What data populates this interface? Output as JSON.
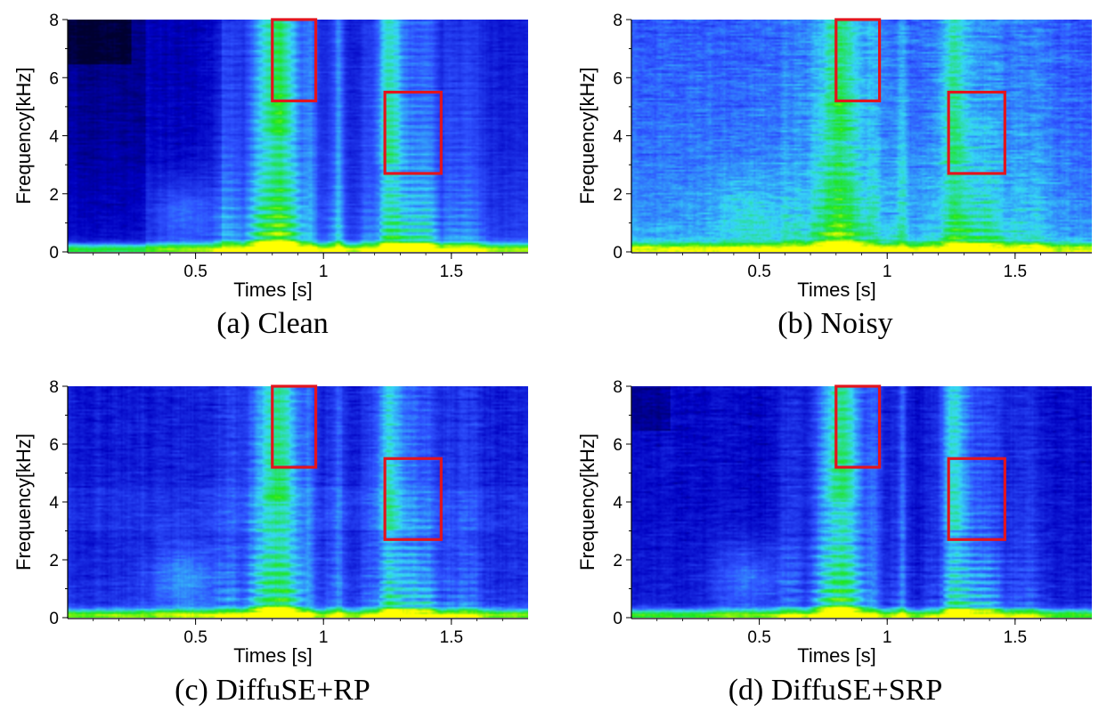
{
  "chart_data": [
    {
      "type": "heatmap",
      "caption": "(a)  Clean",
      "xlabel": "Times [s]",
      "ylabel": "Frequency[kHz]",
      "xlim": [
        0,
        1.8
      ],
      "ylim": [
        0,
        8
      ],
      "x_ticks": [
        0.5,
        1,
        1.5
      ],
      "x_tick_labels": [
        "0.5",
        "1",
        "1.5"
      ],
      "y_ticks": [
        0,
        2,
        4,
        6,
        8
      ],
      "y_tick_labels": [
        "0",
        "2",
        "4",
        "6",
        "8"
      ],
      "variant": "clean",
      "highlight_boxes": [
        {
          "t0": 0.8,
          "t1": 0.97,
          "f0": 5.2,
          "f1": 8.0
        },
        {
          "t0": 1.24,
          "t1": 1.46,
          "f0": 2.7,
          "f1": 5.5
        }
      ],
      "colormap": [
        "#000030",
        "#0000c0",
        "#2f52ff",
        "#36d8f5",
        "#1ee61e",
        "#ffff00"
      ]
    },
    {
      "type": "heatmap",
      "caption": "(b)  Noisy",
      "xlabel": "Times [s]",
      "ylabel": "Frequency[kHz]",
      "xlim": [
        0,
        1.8
      ],
      "ylim": [
        0,
        8
      ],
      "x_ticks": [
        0.5,
        1,
        1.5
      ],
      "x_tick_labels": [
        "0.5",
        "1",
        "1.5"
      ],
      "y_ticks": [
        0,
        2,
        4,
        6,
        8
      ],
      "y_tick_labels": [
        "0",
        "2",
        "4",
        "6",
        "8"
      ],
      "variant": "noisy",
      "highlight_boxes": [
        {
          "t0": 0.8,
          "t1": 0.97,
          "f0": 5.2,
          "f1": 8.0
        },
        {
          "t0": 1.24,
          "t1": 1.46,
          "f0": 2.7,
          "f1": 5.5
        }
      ],
      "colormap": [
        "#000030",
        "#0000c0",
        "#2f52ff",
        "#36d8f5",
        "#1ee61e",
        "#ffff00"
      ]
    },
    {
      "type": "heatmap",
      "caption": "(c)  DiffuSE+RP",
      "xlabel": "Times [s]",
      "ylabel": "Frequency[kHz]",
      "xlim": [
        0,
        1.8
      ],
      "ylim": [
        0,
        8
      ],
      "x_ticks": [
        0.5,
        1,
        1.5
      ],
      "x_tick_labels": [
        "0.5",
        "1",
        "1.5"
      ],
      "y_ticks": [
        0,
        2,
        4,
        6,
        8
      ],
      "y_tick_labels": [
        "0",
        "2",
        "4",
        "6",
        "8"
      ],
      "variant": "rp",
      "highlight_boxes": [
        {
          "t0": 0.8,
          "t1": 0.97,
          "f0": 5.2,
          "f1": 8.0
        },
        {
          "t0": 1.24,
          "t1": 1.46,
          "f0": 2.7,
          "f1": 5.5
        }
      ],
      "colormap": [
        "#000030",
        "#0000c0",
        "#2f52ff",
        "#36d8f5",
        "#1ee61e",
        "#ffff00"
      ]
    },
    {
      "type": "heatmap",
      "caption": "(d)  DiffuSE+SRP",
      "xlabel": "Times [s]",
      "ylabel": "Frequency[kHz]",
      "xlim": [
        0,
        1.8
      ],
      "ylim": [
        0,
        8
      ],
      "x_ticks": [
        0.5,
        1,
        1.5
      ],
      "x_tick_labels": [
        "0.5",
        "1",
        "1.5"
      ],
      "y_ticks": [
        0,
        2,
        4,
        6,
        8
      ],
      "y_tick_labels": [
        "0",
        "2",
        "4",
        "6",
        "8"
      ],
      "variant": "srp",
      "highlight_boxes": [
        {
          "t0": 0.8,
          "t1": 0.97,
          "f0": 5.2,
          "f1": 8.0
        },
        {
          "t0": 1.24,
          "t1": 1.46,
          "f0": 2.7,
          "f1": 5.5
        }
      ],
      "colormap": [
        "#000030",
        "#0000c0",
        "#2f52ff",
        "#36d8f5",
        "#1ee61e",
        "#ffff00"
      ]
    }
  ],
  "colors": {
    "highlight_box": "#e3141d",
    "axis": "#000000"
  }
}
